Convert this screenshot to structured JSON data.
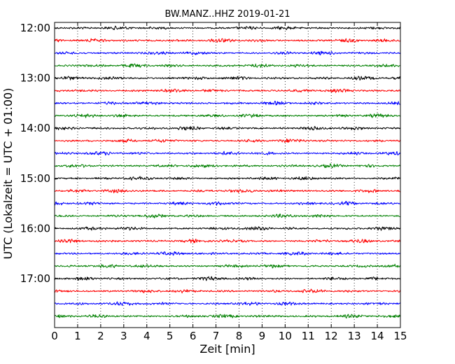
{
  "chart_data": {
    "type": "line",
    "title": "BW.MANZ..HHZ 2019-01-21",
    "xlabel": "Zeit  [min]",
    "ylabel": "UTC (Lokalzeit = UTC + 01:00)",
    "xlim": [
      0,
      15
    ],
    "x_ticks": [
      "0",
      "1",
      "2",
      "3",
      "4",
      "5",
      "6",
      "7",
      "8",
      "9",
      "10",
      "11",
      "12",
      "13",
      "14",
      "15"
    ],
    "y_ticks": [
      "12:00",
      "13:00",
      "14:00",
      "15:00",
      "16:00",
      "17:00"
    ],
    "traces_per_hour": 4,
    "trace_count": 24,
    "trace_colors": [
      "#000000",
      "#ff0000",
      "#0000ff",
      "#008000"
    ],
    "grid": "vertical dotted at each minute",
    "traces": [
      {
        "start": "12:00",
        "color": "#000000"
      },
      {
        "start": "12:15",
        "color": "#ff0000"
      },
      {
        "start": "12:30",
        "color": "#0000ff"
      },
      {
        "start": "12:45",
        "color": "#008000"
      },
      {
        "start": "13:00",
        "color": "#000000"
      },
      {
        "start": "13:15",
        "color": "#ff0000"
      },
      {
        "start": "13:30",
        "color": "#0000ff"
      },
      {
        "start": "13:45",
        "color": "#008000"
      },
      {
        "start": "14:00",
        "color": "#000000"
      },
      {
        "start": "14:15",
        "color": "#ff0000"
      },
      {
        "start": "14:30",
        "color": "#0000ff"
      },
      {
        "start": "14:45",
        "color": "#008000"
      },
      {
        "start": "15:00",
        "color": "#000000"
      },
      {
        "start": "15:15",
        "color": "#ff0000"
      },
      {
        "start": "15:30",
        "color": "#0000ff"
      },
      {
        "start": "15:45",
        "color": "#008000"
      },
      {
        "start": "16:00",
        "color": "#000000"
      },
      {
        "start": "16:15",
        "color": "#ff0000"
      },
      {
        "start": "16:30",
        "color": "#0000ff"
      },
      {
        "start": "16:45",
        "color": "#008000"
      },
      {
        "start": "17:00",
        "color": "#000000"
      },
      {
        "start": "17:15",
        "color": "#ff0000"
      },
      {
        "start": "17:30",
        "color": "#0000ff"
      },
      {
        "start": "17:45",
        "color": "#008000"
      }
    ]
  }
}
